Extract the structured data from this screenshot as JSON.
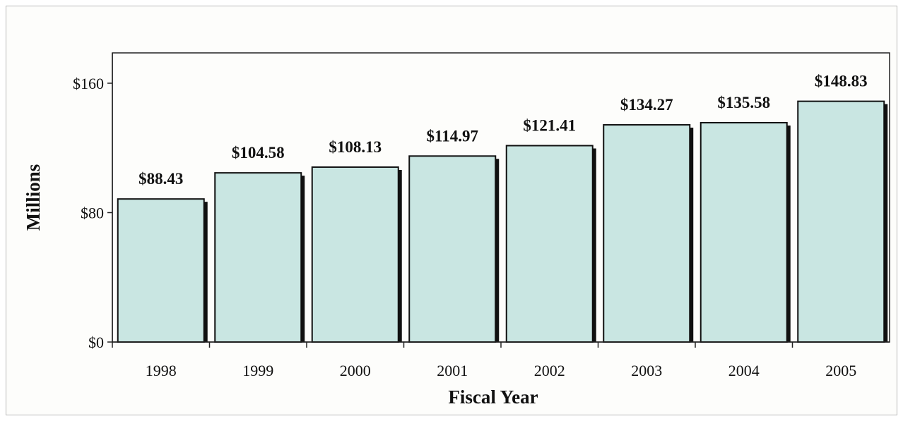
{
  "chart_data": {
    "type": "bar",
    "categories": [
      "1998",
      "1999",
      "2000",
      "2001",
      "2002",
      "2003",
      "2004",
      "2005"
    ],
    "values": [
      88.43,
      104.58,
      108.13,
      114.97,
      121.41,
      134.27,
      135.58,
      148.83
    ],
    "data_labels": [
      "$88.43",
      "$104.58",
      "$108.13",
      "$114.97",
      "$121.41",
      "$134.27",
      "$135.58",
      "$148.83"
    ],
    "title": "",
    "xlabel": "Fiscal Year",
    "ylabel": "Millions",
    "ylim": [
      0,
      160
    ],
    "yticks": [
      0,
      80,
      160
    ],
    "ytick_labels": [
      "$0",
      "$80",
      "$160"
    ],
    "grid": false,
    "legend": false,
    "bar_color": "#c9e6e2",
    "bar_outline_color": "#111111"
  }
}
